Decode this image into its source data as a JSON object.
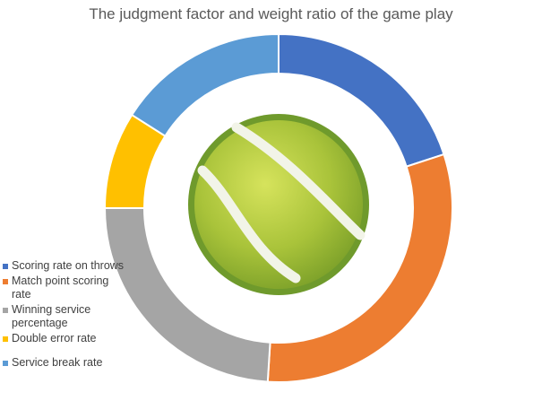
{
  "chart_data": {
    "type": "pie",
    "style": "doughnut",
    "title": "The judgment factor and weight ratio of the game play",
    "categories": [
      "Scoring rate on throws",
      "Match point scoring rate",
      "Winning service percentage",
      "Double error rate",
      "Service break rate"
    ],
    "values": [
      20,
      31,
      24,
      9,
      16
    ],
    "colors": [
      "#4472C4",
      "#ED7D31",
      "#A5A5A5",
      "#FFC000",
      "#5B9BD5"
    ],
    "legend": "left-bottom",
    "center_image": "tennis-ball-icon"
  }
}
